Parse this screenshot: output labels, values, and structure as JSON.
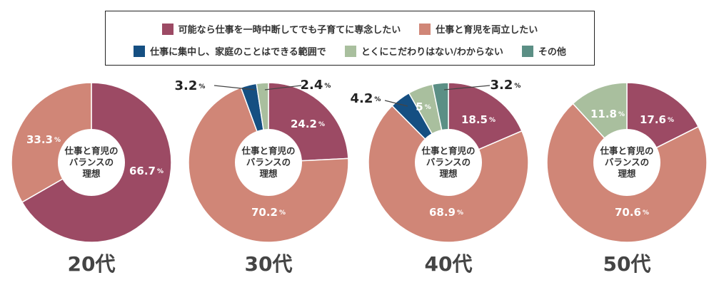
{
  "legend": [
    {
      "label": "可能なら仕事を一時中断してでも子育てに専念したい",
      "color": "#9c4a64"
    },
    {
      "label": "仕事と育児を両立したい",
      "color": "#d08677"
    },
    {
      "label": "仕事に集中し、家庭のことはできる範囲で",
      "color": "#154f82"
    },
    {
      "label": "とくにこだわりはない/わからない",
      "color": "#a9bf9e"
    },
    {
      "label": "その他",
      "color": "#5b8f85"
    }
  ],
  "center_label": [
    "仕事と育児の",
    "バランスの",
    "理想"
  ],
  "chart_data": {
    "type": "pie",
    "unit": "%",
    "charts": [
      {
        "title": "20代",
        "values": [
          66.7,
          33.3,
          0,
          0,
          0
        ],
        "labels": [
          "66.7",
          "33.3",
          "",
          "",
          ""
        ]
      },
      {
        "title": "30代",
        "values": [
          24.2,
          70.2,
          3.2,
          2.4,
          0
        ],
        "labels": [
          "24.2",
          "70.2",
          "3.2",
          "2.4",
          ""
        ]
      },
      {
        "title": "40代",
        "values": [
          18.5,
          68.9,
          4.2,
          5,
          3.2
        ],
        "labels": [
          "18.5",
          "68.9",
          "4.2",
          "5",
          "3.2"
        ]
      },
      {
        "title": "50代",
        "values": [
          17.6,
          70.6,
          0,
          11.8,
          0
        ],
        "labels": [
          "17.6",
          "70.6",
          "",
          "11.8",
          ""
        ]
      }
    ]
  }
}
